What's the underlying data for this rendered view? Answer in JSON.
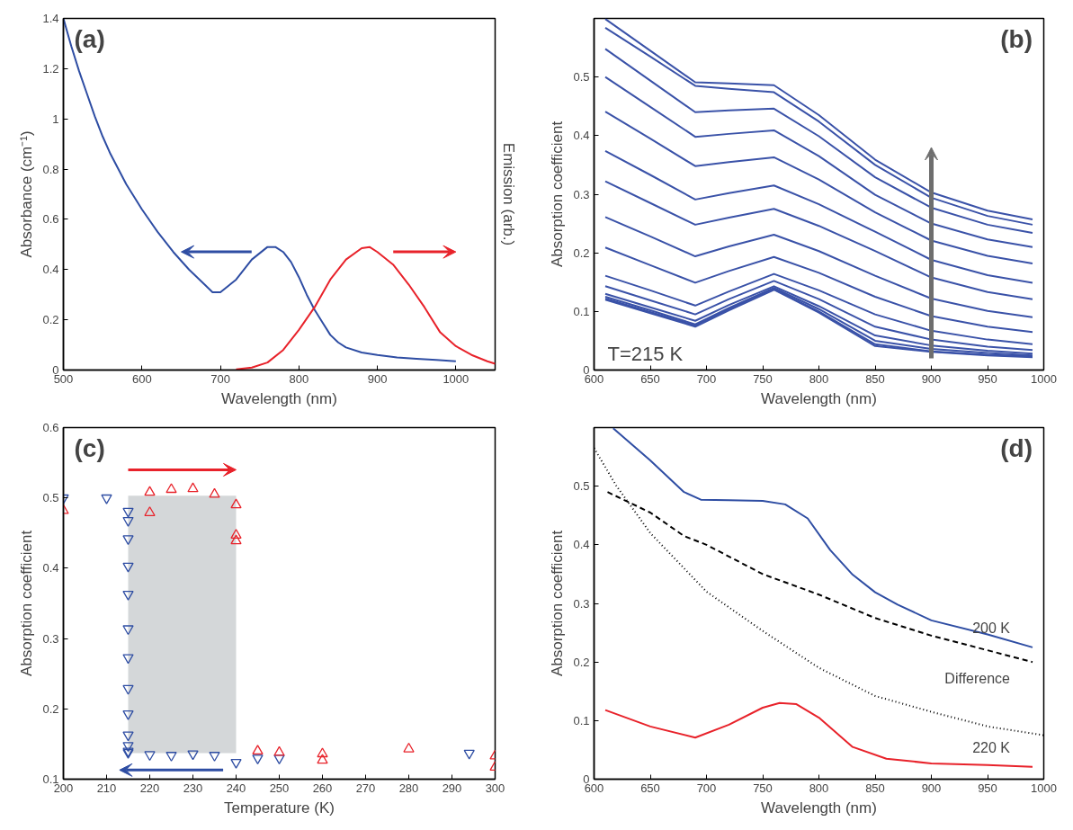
{
  "chart_data": [
    {
      "type": "line",
      "xlabel": "Wavelength (nm)",
      "ylabel": "Absorbance (cm⁻¹)",
      "y2label": "Emission (arb.)",
      "annotations": [
        "(a)"
      ],
      "xlim": [
        500,
        1050
      ],
      "ylim": [
        0,
        1.4
      ],
      "xticks": [
        500,
        600,
        700,
        800,
        900,
        1000
      ],
      "yticks": [
        0,
        0.2,
        0.4,
        0.6,
        0.8,
        1,
        1.2,
        1.4
      ],
      "grid": false,
      "series": [
        {
          "color": "#2e4da3",
          "x": [
            500,
            510,
            520,
            530,
            540,
            550,
            560,
            570,
            580,
            590,
            600,
            620,
            640,
            660,
            680,
            690,
            700,
            720,
            740,
            760,
            770,
            780,
            790,
            800,
            810,
            820,
            830,
            840,
            850,
            860,
            880,
            900,
            925,
            950,
            975,
            1000
          ],
          "values": [
            1.4,
            1.29,
            1.19,
            1.1,
            1.01,
            0.93,
            0.86,
            0.8,
            0.74,
            0.69,
            0.64,
            0.55,
            0.47,
            0.4,
            0.34,
            0.31,
            0.31,
            0.36,
            0.44,
            0.49,
            0.49,
            0.47,
            0.43,
            0.37,
            0.3,
            0.24,
            0.19,
            0.14,
            0.11,
            0.09,
            0.07,
            0.06,
            0.05,
            0.045,
            0.04,
            0.035
          ]
        },
        {
          "color": "#e8222a",
          "x": [
            720,
            740,
            760,
            780,
            800,
            820,
            840,
            860,
            880,
            890,
            900,
            920,
            940,
            960,
            980,
            1000,
            1020,
            1040,
            1050
          ],
          "values": [
            0.003,
            0.01,
            0.03,
            0.08,
            0.16,
            0.25,
            0.36,
            0.44,
            0.485,
            0.49,
            0.47,
            0.42,
            0.34,
            0.25,
            0.15,
            0.095,
            0.06,
            0.035,
            0.025
          ]
        }
      ]
    },
    {
      "type": "line",
      "xlabel": "Wavelength (nm)",
      "ylabel": "Absorption coefficient",
      "annotations": [
        "(b)",
        "T=215 K"
      ],
      "xlim": [
        600,
        1000
      ],
      "ylim": [
        0,
        0.6
      ],
      "xticks": [
        600,
        650,
        700,
        750,
        800,
        850,
        900,
        950,
        1000
      ],
      "yticks": [
        0,
        0.1,
        0.2,
        0.3,
        0.4,
        0.5
      ],
      "grid": false,
      "x": [
        610,
        650,
        690,
        720,
        760,
        800,
        850,
        900,
        950,
        990
      ],
      "series": [
        {
          "color": "#3a52a8",
          "values": [
            0.599,
            0.545,
            0.491,
            0.489,
            0.486,
            0.435,
            0.359,
            0.303,
            0.272,
            0.257
          ]
        },
        {
          "color": "#3a52a8",
          "values": [
            0.584,
            0.535,
            0.485,
            0.48,
            0.474,
            0.424,
            0.35,
            0.294,
            0.263,
            0.248
          ]
        },
        {
          "color": "#3a52a8",
          "values": [
            0.548,
            0.494,
            0.44,
            0.443,
            0.446,
            0.399,
            0.329,
            0.277,
            0.248,
            0.234
          ]
        },
        {
          "color": "#3a52a8",
          "values": [
            0.5,
            0.449,
            0.398,
            0.403,
            0.409,
            0.365,
            0.299,
            0.25,
            0.223,
            0.21
          ]
        },
        {
          "color": "#3a52a8",
          "values": [
            0.441,
            0.395,
            0.348,
            0.355,
            0.363,
            0.325,
            0.269,
            0.221,
            0.195,
            0.182
          ]
        },
        {
          "color": "#3a52a8",
          "values": [
            0.374,
            0.333,
            0.291,
            0.302,
            0.315,
            0.283,
            0.236,
            0.188,
            0.162,
            0.149
          ]
        },
        {
          "color": "#3a52a8",
          "values": [
            0.322,
            0.285,
            0.248,
            0.26,
            0.275,
            0.246,
            0.203,
            0.158,
            0.133,
            0.121
          ]
        },
        {
          "color": "#3a52a8",
          "values": [
            0.261,
            0.228,
            0.194,
            0.211,
            0.231,
            0.203,
            0.161,
            0.122,
            0.101,
            0.09
          ]
        },
        {
          "color": "#3a52a8",
          "values": [
            0.209,
            0.179,
            0.149,
            0.169,
            0.193,
            0.166,
            0.125,
            0.092,
            0.074,
            0.065
          ]
        },
        {
          "color": "#3a52a8",
          "values": [
            0.161,
            0.136,
            0.11,
            0.134,
            0.164,
            0.136,
            0.095,
            0.067,
            0.052,
            0.044
          ]
        },
        {
          "color": "#3a52a8",
          "values": [
            0.143,
            0.119,
            0.095,
            0.121,
            0.152,
            0.121,
            0.074,
            0.052,
            0.04,
            0.034
          ]
        },
        {
          "color": "#3a52a8",
          "values": [
            0.13,
            0.107,
            0.084,
            0.111,
            0.143,
            0.109,
            0.059,
            0.042,
            0.033,
            0.028
          ]
        },
        {
          "color": "#3a52a8",
          "values": [
            0.125,
            0.102,
            0.078,
            0.106,
            0.14,
            0.104,
            0.05,
            0.036,
            0.029,
            0.025
          ]
        },
        {
          "color": "#3a52a8",
          "values": [
            0.122,
            0.099,
            0.076,
            0.104,
            0.138,
            0.1,
            0.044,
            0.032,
            0.026,
            0.023
          ]
        },
        {
          "color": "#3a52a8",
          "values": [
            0.12,
            0.097,
            0.074,
            0.102,
            0.137,
            0.098,
            0.041,
            0.031,
            0.025,
            0.022
          ]
        }
      ]
    },
    {
      "type": "scatter",
      "xlabel": "Temperature (K)",
      "ylabel": "Absorption coefficient",
      "annotations": [
        "(c)"
      ],
      "xlim": [
        200,
        300
      ],
      "ylim": [
        0.1,
        0.6
      ],
      "xticks": [
        200,
        210,
        220,
        230,
        240,
        250,
        260,
        270,
        280,
        290,
        300
      ],
      "yticks": [
        0.1,
        0.2,
        0.3,
        0.4,
        0.5,
        0.6
      ],
      "grid": false,
      "series": [
        {
          "color": "#2e4da3",
          "x": [
            200,
            210,
            215,
            215,
            215,
            215,
            215,
            215,
            215,
            215,
            215,
            215,
            215,
            215,
            215,
            220,
            225,
            230,
            235,
            240,
            245,
            250,
            294
          ],
          "values": [
            0.5,
            0.5,
            0.481,
            0.468,
            0.442,
            0.403,
            0.363,
            0.314,
            0.273,
            0.229,
            0.193,
            0.163,
            0.148,
            0.14,
            0.138,
            0.135,
            0.134,
            0.136,
            0.134,
            0.124,
            0.13,
            0.13,
            0.137
          ]
        },
        {
          "color": "#e8222a",
          "marker": "triangle",
          "x": [
            200,
            220,
            220,
            225,
            230,
            235,
            240,
            240,
            240,
            245,
            250,
            260,
            260,
            280,
            300,
            300
          ],
          "values": [
            0.482,
            0.508,
            0.479,
            0.512,
            0.513,
            0.505,
            0.49,
            0.447,
            0.439,
            0.14,
            0.138,
            0.136,
            0.127,
            0.143,
            0.133,
            0.117
          ]
        },
        {
          "type": "bar",
          "color": "#d4d7d9",
          "x": [
            227.5
          ],
          "values": [
            0.366
          ],
          "base": [
            0.137
          ]
        }
      ]
    },
    {
      "type": "line",
      "xlabel": "Wavelength (nm)",
      "ylabel": "Absorption coefficient",
      "annotations": [
        "(d)"
      ],
      "xlim": [
        600,
        1000
      ],
      "ylim": [
        0,
        0.6
      ],
      "xticks": [
        600,
        650,
        700,
        750,
        800,
        850,
        900,
        950,
        1000
      ],
      "yticks": [
        0,
        0.1,
        0.2,
        0.3,
        0.4,
        0.5
      ],
      "grid": false,
      "series": [
        {
          "name": "200 K",
          "color": "#2e4da3",
          "line_style": "solid",
          "x": [
            617,
            650,
            680,
            695,
            720,
            750,
            770,
            790,
            810,
            830,
            850,
            870,
            900,
            950,
            990
          ],
          "values": [
            0.599,
            0.544,
            0.49,
            0.477,
            0.476,
            0.475,
            0.469,
            0.445,
            0.391,
            0.349,
            0.319,
            0.298,
            0.271,
            0.247,
            0.225
          ]
        },
        {
          "name": "Difference",
          "color": "#000000",
          "line_style": "dashed",
          "x": [
            612,
            650,
            680,
            700,
            750,
            800,
            850,
            900,
            950,
            990
          ],
          "values": [
            0.49,
            0.455,
            0.415,
            0.4,
            0.35,
            0.315,
            0.275,
            0.245,
            0.22,
            0.2
          ]
        },
        {
          "color": "#000000",
          "line_style": "dotted",
          "x": [
            600,
            620,
            650,
            680,
            700,
            750,
            800,
            850,
            900,
            950,
            1000
          ],
          "values": [
            0.565,
            0.5,
            0.42,
            0.36,
            0.32,
            0.253,
            0.19,
            0.142,
            0.115,
            0.09,
            0.075
          ]
        },
        {
          "name": "220 K",
          "color": "#e8222a",
          "line_style": "solid",
          "x": [
            610,
            650,
            690,
            720,
            750,
            765,
            780,
            800,
            830,
            860,
            900,
            950,
            990
          ],
          "values": [
            0.118,
            0.09,
            0.071,
            0.093,
            0.122,
            0.13,
            0.128,
            0.105,
            0.055,
            0.035,
            0.027,
            0.024,
            0.021
          ]
        }
      ]
    }
  ]
}
